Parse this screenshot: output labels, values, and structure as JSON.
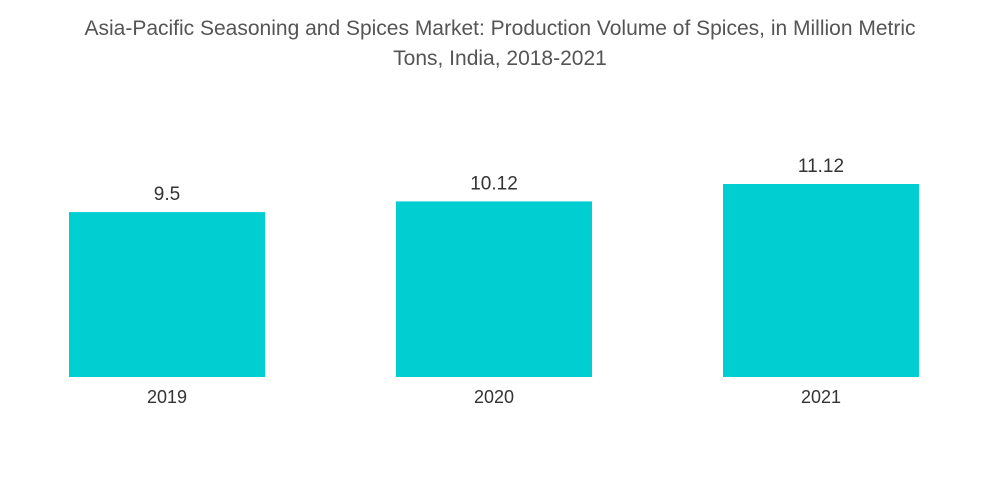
{
  "chart_data": {
    "type": "bar",
    "title_lines": [
      "Asia-Pacific Seasoning and Spices Market: Production Volume of Spices, in Million Metric",
      "Tons, India, 2018-2021"
    ],
    "categories": [
      "2019",
      "2020",
      "2021"
    ],
    "values": [
      9.5,
      10.12,
      11.12
    ],
    "value_labels": [
      "9.5",
      "10.12",
      "11.12"
    ],
    "bar_color": "#00CED1",
    "xlabel": "",
    "ylabel": "",
    "ylim": [
      0,
      11.12
    ],
    "grid": false,
    "legend": "none"
  }
}
